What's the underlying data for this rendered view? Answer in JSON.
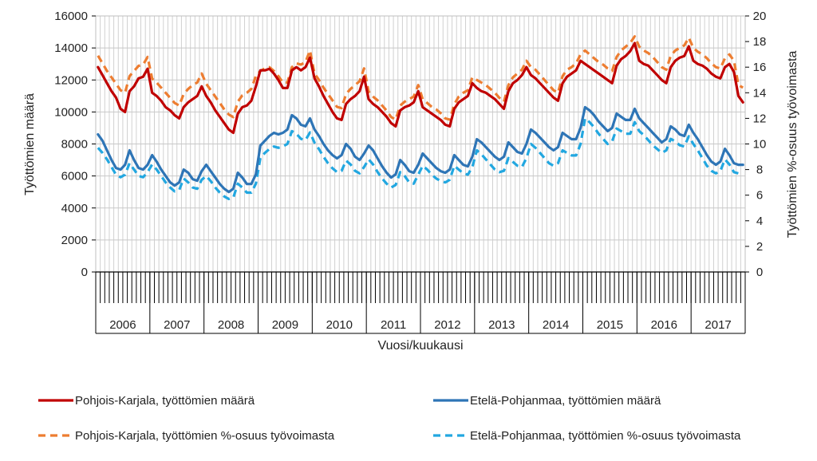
{
  "chart_data": {
    "type": "line",
    "xlabel": "Vuosi/kuukausi",
    "ylabel_left": "Työttömien määrä",
    "ylabel_right": "Työttömien %-osuus työvoimasta",
    "ylim_left": [
      0,
      16000
    ],
    "ylim_right": [
      0,
      20
    ],
    "left_ticks": [
      "0",
      "2000",
      "4000",
      "6000",
      "8000",
      "10000",
      "12000",
      "14000",
      "16000"
    ],
    "right_ticks": [
      "0",
      "2",
      "4",
      "6",
      "8",
      "10",
      "12",
      "14",
      "16",
      "18",
      "20"
    ],
    "years": [
      "2006",
      "2007",
      "2008",
      "2009",
      "2010",
      "2011",
      "2012",
      "2013",
      "2014",
      "2015",
      "2016",
      "2017"
    ],
    "months_per_year": 12,
    "grid": true,
    "legend_position": "bottom",
    "series": [
      {
        "name": "Pohjois-Karjala,  työttömien määrä",
        "axis": "left",
        "color": "#c00000",
        "dash": "solid",
        "values": [
          12800,
          12300,
          11800,
          11300,
          10900,
          10200,
          10000,
          11300,
          11600,
          12100,
          12200,
          12700,
          11200,
          11000,
          10700,
          10300,
          10100,
          9800,
          9600,
          10300,
          10600,
          10800,
          11000,
          11600,
          11000,
          10600,
          10100,
          9700,
          9300,
          8900,
          8700,
          9900,
          10300,
          10400,
          10700,
          11600,
          12600,
          12600,
          12700,
          12400,
          12000,
          11500,
          11500,
          12600,
          12800,
          12600,
          12800,
          13400,
          12100,
          11600,
          11000,
          10500,
          10000,
          9600,
          9500,
          10500,
          10800,
          11000,
          11300,
          12200,
          10800,
          10500,
          10300,
          10000,
          9700,
          9300,
          9100,
          10100,
          10300,
          10400,
          10600,
          11300,
          10300,
          10100,
          9900,
          9700,
          9500,
          9200,
          9100,
          10200,
          10600,
          10800,
          11000,
          11800,
          11500,
          11300,
          11200,
          11000,
          10800,
          10500,
          10200,
          11300,
          11800,
          12000,
          12300,
          12800,
          12300,
          12100,
          11800,
          11500,
          11200,
          10900,
          10700,
          11800,
          12200,
          12400,
          12600,
          13200,
          13000,
          12800,
          12600,
          12400,
          12200,
          12000,
          11800,
          12900,
          13300,
          13500,
          13800,
          14300,
          13200,
          13000,
          12900,
          12600,
          12300,
          12000,
          11800,
          12800,
          13200,
          13400,
          13500,
          14100,
          13200,
          13000,
          12900,
          12700,
          12400,
          12200,
          12100,
          12800,
          13000,
          12500,
          11000,
          10600
        ]
      },
      {
        "name": "Etelä-Pohjanmaa, työttömien määrä",
        "axis": "left",
        "color": "#2e75b6",
        "dash": "solid",
        "values": [
          8600,
          8200,
          7600,
          7000,
          6500,
          6400,
          6700,
          7600,
          7000,
          6500,
          6400,
          6700,
          7300,
          6900,
          6400,
          6000,
          5600,
          5400,
          5600,
          6400,
          6200,
          5800,
          5700,
          6300,
          6700,
          6300,
          5900,
          5500,
          5200,
          5000,
          5200,
          6200,
          5900,
          5500,
          5500,
          6100,
          7900,
          8200,
          8500,
          8700,
          8600,
          8700,
          8900,
          9800,
          9600,
          9200,
          9100,
          9600,
          8900,
          8500,
          8000,
          7600,
          7300,
          7100,
          7300,
          8000,
          7700,
          7200,
          7000,
          7400,
          7900,
          7600,
          7100,
          6600,
          6200,
          5900,
          6100,
          7000,
          6700,
          6300,
          6200,
          6700,
          7400,
          7100,
          6800,
          6500,
          6300,
          6200,
          6400,
          7300,
          7000,
          6700,
          6600,
          7200,
          8300,
          8100,
          7800,
          7500,
          7200,
          7000,
          7200,
          8100,
          7800,
          7500,
          7400,
          8000,
          8900,
          8700,
          8400,
          8100,
          7800,
          7600,
          7800,
          8700,
          8500,
          8300,
          8300,
          9000,
          10300,
          10100,
          9800,
          9400,
          9100,
          8800,
          9000,
          9900,
          9700,
          9500,
          9500,
          10200,
          9600,
          9300,
          9000,
          8700,
          8400,
          8100,
          8300,
          9100,
          8900,
          8600,
          8500,
          9200,
          8700,
          8300,
          7800,
          7300,
          6900,
          6700,
          6900,
          7700,
          7300,
          6800,
          6700,
          6700
        ]
      },
      {
        "name": "Pohjois-Karjala, työttömien %-osuus työvoimasta",
        "axis": "right",
        "color": "#ed7d31",
        "dash": "dashed",
        "values": [
          16.9,
          16.3,
          15.7,
          15.2,
          14.7,
          14.2,
          14.0,
          15.3,
          15.7,
          16.1,
          16.2,
          16.8,
          15.1,
          14.8,
          14.4,
          14.0,
          13.6,
          13.2,
          13.0,
          13.9,
          14.3,
          14.6,
          14.8,
          15.5,
          14.7,
          14.2,
          13.7,
          13.2,
          12.7,
          12.3,
          12.1,
          13.3,
          13.8,
          14.0,
          14.3,
          15.3,
          15.7,
          15.9,
          16.0,
          15.7,
          15.3,
          14.8,
          14.8,
          16.0,
          16.3,
          16.2,
          16.4,
          17.3,
          15.5,
          15.0,
          14.4,
          13.9,
          13.4,
          12.9,
          12.8,
          13.9,
          14.3,
          14.6,
          14.9,
          15.9,
          14.1,
          13.7,
          13.4,
          13.0,
          12.6,
          12.1,
          11.9,
          13.0,
          13.3,
          13.5,
          13.7,
          14.6,
          13.5,
          13.2,
          12.9,
          12.7,
          12.4,
          12.0,
          11.9,
          13.1,
          13.7,
          14.0,
          14.2,
          15.2,
          15.0,
          14.8,
          14.6,
          14.3,
          14.0,
          13.6,
          13.3,
          14.6,
          15.2,
          15.5,
          15.8,
          16.5,
          16.0,
          15.8,
          15.4,
          15.0,
          14.6,
          14.2,
          14.0,
          15.3,
          15.8,
          16.0,
          16.3,
          17.0,
          17.3,
          17.0,
          16.7,
          16.4,
          16.2,
          15.9,
          15.7,
          16.8,
          17.3,
          17.6,
          17.9,
          18.4,
          17.6,
          17.3,
          17.1,
          16.8,
          16.4,
          16.0,
          15.8,
          16.9,
          17.3,
          17.5,
          17.7,
          18.3,
          17.5,
          17.2,
          17.0,
          16.7,
          16.3,
          16.0,
          15.9,
          16.7,
          17.0,
          16.5,
          14.6,
          14.4
        ]
      },
      {
        "name": "Etelä-Pohjanmaa, työttömien %-osuus työvoimasta",
        "axis": "right",
        "color": "#22a7e0",
        "dash": "dashed",
        "values": [
          9.7,
          9.3,
          8.8,
          8.2,
          7.6,
          7.4,
          7.6,
          8.5,
          8.0,
          7.5,
          7.4,
          7.8,
          8.4,
          8.0,
          7.5,
          7.0,
          6.6,
          6.3,
          6.4,
          7.3,
          7.0,
          6.6,
          6.5,
          7.2,
          7.5,
          7.1,
          6.6,
          6.2,
          5.9,
          5.7,
          5.8,
          6.9,
          6.6,
          6.2,
          6.2,
          6.9,
          8.9,
          9.3,
          9.6,
          9.8,
          9.7,
          9.8,
          10.0,
          11.0,
          10.8,
          10.4,
          10.3,
          10.9,
          10.1,
          9.6,
          9.0,
          8.5,
          8.1,
          7.8,
          7.9,
          8.7,
          8.4,
          7.9,
          7.7,
          8.2,
          8.8,
          8.4,
          7.8,
          7.3,
          6.9,
          6.6,
          6.8,
          7.8,
          7.5,
          7.0,
          6.9,
          7.6,
          8.3,
          8.0,
          7.6,
          7.3,
          7.1,
          7.0,
          7.2,
          8.3,
          8.0,
          7.7,
          7.6,
          8.2,
          9.5,
          9.2,
          8.8,
          8.4,
          8.0,
          7.8,
          7.9,
          8.9,
          8.6,
          8.3,
          8.2,
          8.9,
          10.0,
          9.7,
          9.3,
          8.9,
          8.5,
          8.3,
          8.5,
          9.5,
          9.3,
          9.1,
          9.1,
          10.0,
          12.0,
          11.7,
          11.3,
          10.8,
          10.4,
          10.0,
          10.2,
          11.2,
          11.0,
          10.8,
          10.8,
          11.7,
          11.0,
          10.7,
          10.3,
          9.9,
          9.6,
          9.3,
          9.5,
          10.4,
          10.2,
          9.9,
          9.8,
          10.6,
          10.0,
          9.5,
          8.9,
          8.3,
          7.9,
          7.7,
          7.9,
          8.8,
          8.4,
          7.8,
          7.7,
          7.8
        ]
      }
    ]
  }
}
